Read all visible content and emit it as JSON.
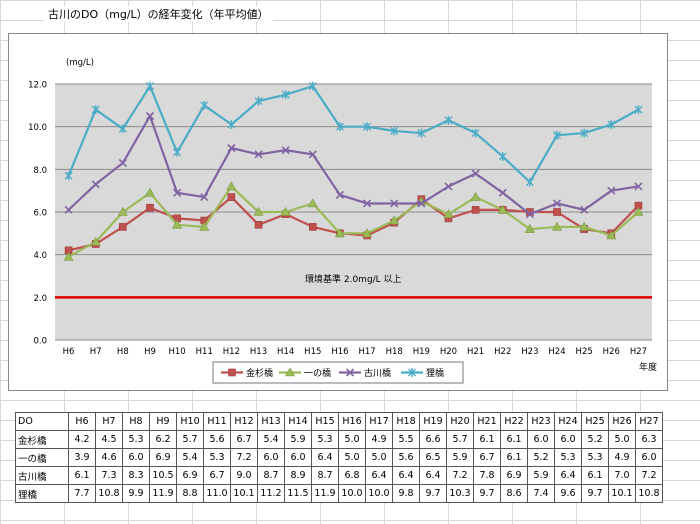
{
  "title": "古川のDO（mg/L）の経年変化（年平均値）",
  "chart_data": {
    "type": "line",
    "ylabel": "(mg/L)",
    "xlabel": "年度",
    "ylim": [
      0,
      12
    ],
    "yticks": [
      "0.0",
      "2.0",
      "4.0",
      "6.0",
      "8.0",
      "10.0",
      "12.0"
    ],
    "categories": [
      "H6",
      "H7",
      "H8",
      "H9",
      "H10",
      "H11",
      "H12",
      "H13",
      "H14",
      "H15",
      "H16",
      "H17",
      "H18",
      "H19",
      "H20",
      "H21",
      "H22",
      "H23",
      "H24",
      "H25",
      "H26",
      "H27"
    ],
    "series": [
      {
        "name": "金杉橋",
        "color": "#c0504d",
        "marker": "square",
        "values": [
          4.2,
          4.5,
          5.3,
          6.2,
          5.7,
          5.6,
          6.7,
          5.4,
          5.9,
          5.3,
          5.0,
          4.9,
          5.5,
          6.6,
          5.7,
          6.1,
          6.1,
          6.0,
          6.0,
          5.2,
          5.0,
          6.3
        ]
      },
      {
        "name": "一の橋",
        "color": "#9bbb59",
        "marker": "triangle",
        "values": [
          3.9,
          4.6,
          6.0,
          6.9,
          5.4,
          5.3,
          7.2,
          6.0,
          6.0,
          6.4,
          5.0,
          5.0,
          5.6,
          6.5,
          5.9,
          6.7,
          6.1,
          5.2,
          5.3,
          5.3,
          4.9,
          6.0
        ]
      },
      {
        "name": "古川橋",
        "color": "#8064a2",
        "marker": "x",
        "values": [
          6.1,
          7.3,
          8.3,
          10.5,
          6.9,
          6.7,
          9.0,
          8.7,
          8.9,
          8.7,
          6.8,
          6.4,
          6.4,
          6.4,
          7.2,
          7.8,
          6.9,
          5.9,
          6.4,
          6.1,
          7.0,
          7.2
        ]
      },
      {
        "name": "狸橋",
        "color": "#4bacc6",
        "marker": "star",
        "values": [
          7.7,
          10.8,
          9.9,
          11.9,
          8.8,
          11.0,
          10.1,
          11.2,
          11.5,
          11.9,
          10.0,
          10.0,
          9.8,
          9.7,
          10.3,
          9.7,
          8.6,
          7.4,
          9.6,
          9.7,
          10.1,
          10.8
        ]
      }
    ],
    "reference_line": {
      "value": 2.0,
      "color": "#e00000",
      "label": "環境基準 2.0mg/L 以上"
    }
  },
  "table": {
    "header_label": "DO",
    "columns": [
      "H6",
      "H7",
      "H8",
      "H9",
      "H10",
      "H11",
      "H12",
      "H13",
      "H14",
      "H15",
      "H16",
      "H17",
      "H18",
      "H19",
      "H20",
      "H21",
      "H22",
      "H23",
      "H24",
      "H25",
      "H26",
      "H27"
    ],
    "rows": [
      {
        "name": "金杉橋",
        "values": [
          "4.2",
          "4.5",
          "5.3",
          "6.2",
          "5.7",
          "5.6",
          "6.7",
          "5.4",
          "5.9",
          "5.3",
          "5.0",
          "4.9",
          "5.5",
          "6.6",
          "5.7",
          "6.1",
          "6.1",
          "6.0",
          "6.0",
          "5.2",
          "5.0",
          "6.3"
        ]
      },
      {
        "name": "一の橋",
        "values": [
          "3.9",
          "4.6",
          "6.0",
          "6.9",
          "5.4",
          "5.3",
          "7.2",
          "6.0",
          "6.0",
          "6.4",
          "5.0",
          "5.0",
          "5.6",
          "6.5",
          "5.9",
          "6.7",
          "6.1",
          "5.2",
          "5.3",
          "5.3",
          "4.9",
          "6.0"
        ]
      },
      {
        "name": "古川橋",
        "values": [
          "6.1",
          "7.3",
          "8.3",
          "10.5",
          "6.9",
          "6.7",
          "9.0",
          "8.7",
          "8.9",
          "8.7",
          "6.8",
          "6.4",
          "6.4",
          "6.4",
          "7.2",
          "7.8",
          "6.9",
          "5.9",
          "6.4",
          "6.1",
          "7.0",
          "7.2"
        ]
      },
      {
        "name": "狸橋",
        "values": [
          "7.7",
          "10.8",
          "9.9",
          "11.9",
          "8.8",
          "11.0",
          "10.1",
          "11.2",
          "11.5",
          "11.9",
          "10.0",
          "10.0",
          "9.8",
          "9.7",
          "10.3",
          "9.7",
          "8.6",
          "7.4",
          "9.6",
          "9.7",
          "10.1",
          "10.8"
        ]
      }
    ]
  }
}
